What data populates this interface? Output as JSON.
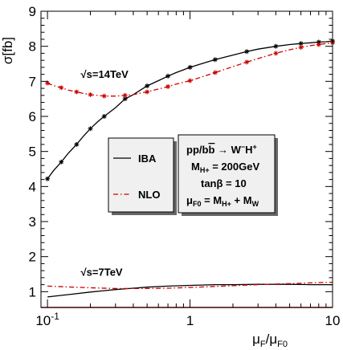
{
  "chart_data": {
    "type": "line",
    "xlabel": "μF/μF0",
    "ylabel": "σ[fb]",
    "xscale": "log",
    "xlim": [
      0.09,
      10
    ],
    "ylim": [
      0.55,
      9
    ],
    "x_ticks": [
      {
        "value": 0.1,
        "label": "10",
        "sup": "-1"
      },
      {
        "value": 1,
        "label": "1",
        "sup": ""
      },
      {
        "value": 10,
        "label": "10",
        "sup": ""
      }
    ],
    "y_ticks": [
      1,
      2,
      3,
      4,
      5,
      6,
      7,
      8,
      9
    ],
    "annotations": [
      {
        "text": "√s=14TeV",
        "x": 0.2,
        "y": 7.1
      },
      {
        "text": "√s=7TeV",
        "x": 0.2,
        "y": 1.45
      }
    ],
    "legend": {
      "placement": "center",
      "entries": [
        {
          "label": "IBA",
          "series": "IBA"
        },
        {
          "label": "NLO",
          "series": "NLO"
        }
      ]
    },
    "info_box": {
      "lines": [
        "pp/bb → W−H+",
        "MH+ = 200GeV",
        "tanβ = 10",
        "μF0 = MH+ + MW"
      ]
    },
    "colors": {
      "IBA": "#000000",
      "NLO": "#cc0000",
      "baseline": "#cc0000"
    },
    "series": [
      {
        "name": "IBA",
        "energy": "√s=14TeV",
        "style": "solid",
        "markers": "star",
        "x": [
          0.1,
          0.11,
          0.125,
          0.14,
          0.16,
          0.18,
          0.2,
          0.225,
          0.25,
          0.3,
          0.35,
          0.4,
          0.5,
          0.6,
          0.7,
          0.8,
          1,
          1.2,
          1.5,
          2,
          2.5,
          3,
          4,
          5,
          6,
          7,
          8,
          9,
          10
        ],
        "y": [
          4.22,
          4.45,
          4.7,
          4.95,
          5.2,
          5.45,
          5.65,
          5.85,
          6.0,
          6.25,
          6.5,
          6.62,
          6.87,
          7.02,
          7.15,
          7.25,
          7.4,
          7.5,
          7.62,
          7.75,
          7.85,
          7.92,
          8.0,
          8.05,
          8.08,
          8.1,
          8.12,
          8.13,
          8.15
        ]
      },
      {
        "name": "NLO",
        "energy": "√s=14TeV",
        "style": "dashdot",
        "markers": "star",
        "x": [
          0.1,
          0.11,
          0.125,
          0.14,
          0.16,
          0.18,
          0.2,
          0.225,
          0.25,
          0.3,
          0.35,
          0.4,
          0.5,
          0.6,
          0.7,
          0.8,
          1,
          1.2,
          1.5,
          2,
          2.5,
          3,
          4,
          5,
          6,
          7,
          8,
          9,
          10
        ],
        "y": [
          6.95,
          6.88,
          6.82,
          6.75,
          6.7,
          6.65,
          6.62,
          6.6,
          6.58,
          6.58,
          6.6,
          6.62,
          6.7,
          6.78,
          6.85,
          6.92,
          7.02,
          7.12,
          7.25,
          7.42,
          7.55,
          7.65,
          7.8,
          7.9,
          7.97,
          8.02,
          8.05,
          8.08,
          8.1
        ]
      },
      {
        "name": "IBA",
        "energy": "√s=7TeV",
        "style": "solid",
        "markers": "none",
        "x": [
          0.1,
          0.15,
          0.2,
          0.3,
          0.4,
          0.5,
          0.7,
          1,
          1.5,
          2,
          3,
          5,
          7,
          10
        ],
        "y": [
          0.85,
          0.93,
          0.99,
          1.06,
          1.1,
          1.13,
          1.16,
          1.18,
          1.2,
          1.2,
          1.21,
          1.21,
          1.2,
          1.2
        ]
      },
      {
        "name": "NLO",
        "energy": "√s=7TeV",
        "style": "dashdot",
        "markers": "none",
        "x": [
          0.1,
          0.15,
          0.2,
          0.3,
          0.4,
          0.5,
          0.7,
          1,
          1.5,
          2,
          3,
          5,
          7,
          10
        ],
        "y": [
          1.16,
          1.13,
          1.11,
          1.09,
          1.09,
          1.09,
          1.1,
          1.12,
          1.15,
          1.17,
          1.2,
          1.23,
          1.25,
          1.27
        ]
      }
    ]
  }
}
